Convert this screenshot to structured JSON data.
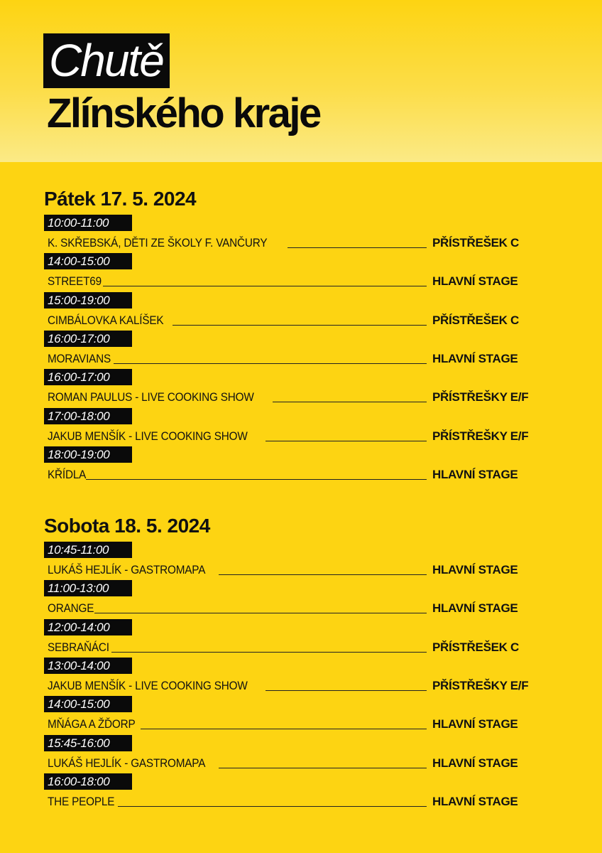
{
  "title": {
    "line1": "Chutě",
    "line2": "Zlínského kraje"
  },
  "colors": {
    "background": "#FDD412",
    "label_box": "#0a0a0a"
  },
  "days": [
    {
      "heading": "Pátek 17. 5. 2024",
      "events": [
        {
          "time": "10:00-11:00",
          "name": "K. SKŘEBSKÁ, DĚTI ZE ŠKOLY F. VANČURY",
          "venue": "PŘÍSTŘEŠEK C"
        },
        {
          "time": "14:00-15:00",
          "name": "STREET69",
          "venue": "HLAVNÍ STAGE"
        },
        {
          "time": "15:00-19:00",
          "name": "CIMBÁLOVKA KALÍŠEK",
          "venue": "PŘÍSTŘEŠEK C"
        },
        {
          "time": "16:00-17:00",
          "name": "MORAVIANS",
          "venue": "HLAVNÍ STAGE"
        },
        {
          "time": "16:00-17:00",
          "name": "ROMAN PAULUS - LIVE COOKING SHOW",
          "venue": "PŘÍSTŘEŠKY E/F"
        },
        {
          "time": "17:00-18:00",
          "name": "JAKUB MENŠÍK - LIVE COOKING SHOW",
          "venue": "PŘÍSTŘEŠKY E/F"
        },
        {
          "time": "18:00-19:00",
          "name": "KŘÍDLA",
          "venue": "HLAVNÍ STAGE"
        }
      ]
    },
    {
      "heading": "Sobota 18. 5. 2024",
      "events": [
        {
          "time": "10:45-11:00",
          "name": "LUKÁŠ HEJLÍK - GASTROMAPA",
          "venue": "HLAVNÍ STAGE"
        },
        {
          "time": "11:00-13:00",
          "name": "ORANGE",
          "venue": "HLAVNÍ STAGE"
        },
        {
          "time": "12:00-14:00",
          "name": "SEBRAŇÁCI",
          "venue": "PŘÍSTŘEŠEK C"
        },
        {
          "time": "13:00-14:00",
          "name": "JAKUB MENŠÍK - LIVE COOKING SHOW",
          "venue": "PŘÍSTŘEŠKY E/F"
        },
        {
          "time": "14:00-15:00",
          "name": "MŇÁGA A ŽĎORP",
          "venue": "HLAVNÍ STAGE"
        },
        {
          "time": "15:45-16:00",
          "name": "LUKÁŠ HEJLÍK - GASTROMAPA",
          "venue": "HLAVNÍ STAGE"
        },
        {
          "time": "16:00-18:00",
          "name": "THE PEOPLE",
          "venue": "HLAVNÍ STAGE"
        }
      ]
    }
  ]
}
